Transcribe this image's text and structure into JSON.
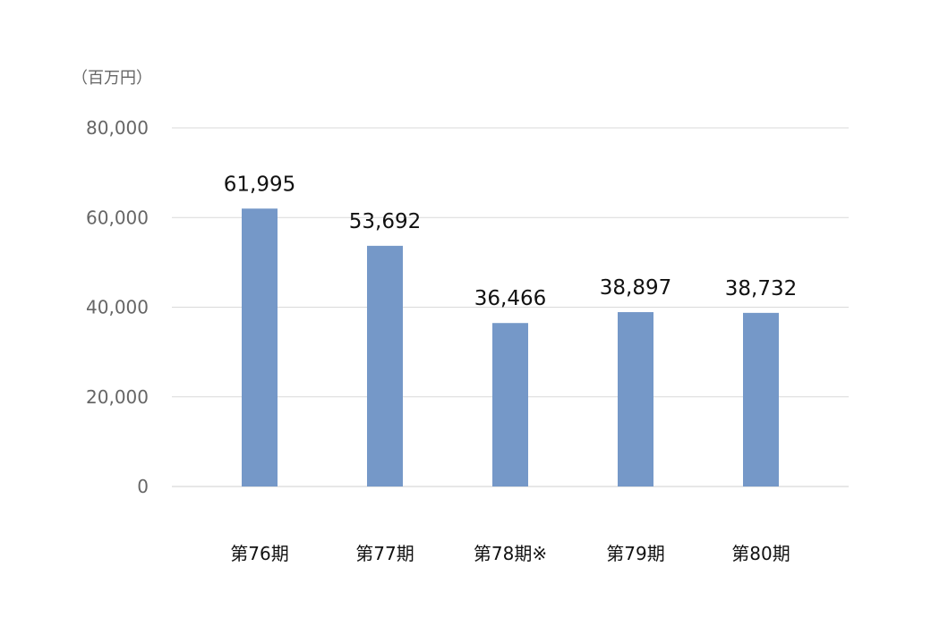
{
  "chart_data": {
    "type": "bar",
    "unit_label": "（百万円）",
    "categories": [
      "第76期",
      "第77期",
      "第78期※",
      "第79期",
      "第80期"
    ],
    "values": [
      61995,
      53692,
      36466,
      38897,
      38732
    ],
    "data_labels": [
      "61,995",
      "53,692",
      "36,466",
      "38,897",
      "38,732"
    ],
    "y_ticks": [
      0,
      20000,
      40000,
      60000,
      80000
    ],
    "y_tick_labels": [
      "0",
      "20,000",
      "40,000",
      "60,000",
      "80,000"
    ],
    "ylim": [
      0,
      80000
    ],
    "grid": true,
    "bar_color": "#7598c8"
  }
}
